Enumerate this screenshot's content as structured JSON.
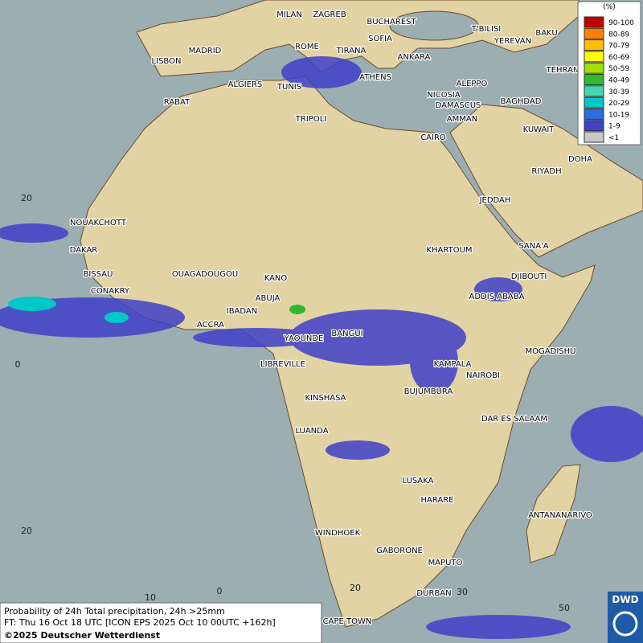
{
  "map": {
    "cities": [
      "MILAN",
      "ZAGREB",
      "BUCHAREST",
      "T'BILISI",
      "BAKU",
      "MADRID",
      "ROME",
      "SOFIA",
      "YEREVAN",
      "LISBON",
      "TIRANA",
      "ANKARA",
      "TEHRAN",
      "ALGIERS",
      "TUNIS",
      "ATHENS",
      "ALEPPO",
      "RABAT",
      "NICOSIA",
      "BAGHDAD",
      "DAMASCUS",
      "TRIPOLI",
      "AMMAN",
      "KUWAIT",
      "CAIRO",
      "DOHA",
      "RIYADH",
      "NOUAKCHOTT",
      "JEDDAH",
      "DAKAR",
      "SANA'A",
      "KHARTOUM",
      "BISSAU",
      "OUAGADOUGOU",
      "KANO",
      "DJIBOUTI",
      "CONAKRY",
      "ABUJA",
      "ADDIS ABABA",
      "IBADAN",
      "ACCRA",
      "BANGUI",
      "YAOUNDE",
      "MOGADISHU",
      "LIBREVILLE",
      "KAMPALA",
      "NAIROBI",
      "KINSHASA",
      "BUJUMBURA",
      "DAR ES SALAAM",
      "LUANDA",
      "LUSAKA",
      "HARARE",
      "ANTANANARIVO",
      "WINDHOEK",
      "GABORONE",
      "MAPUTO",
      "DURBAN",
      "CAPE TOWN"
    ],
    "grid_labels": [
      "20",
      "0",
      "20",
      "10",
      "0",
      "20",
      "30",
      "50"
    ],
    "legend": {
      "title": "(%)",
      "items": [
        {
          "label": "90-100",
          "color": "#c00000"
        },
        {
          "label": "80-89",
          "color": "#ff7f00"
        },
        {
          "label": "70-79",
          "color": "#ffbf00"
        },
        {
          "label": "60-69",
          "color": "#ffff00"
        },
        {
          "label": "50-59",
          "color": "#a0e000"
        },
        {
          "label": "40-49",
          "color": "#30b830"
        },
        {
          "label": "30-39",
          "color": "#40d8b0"
        },
        {
          "label": "20-29",
          "color": "#00c8c8"
        },
        {
          "label": "10-19",
          "color": "#2a6ee0"
        },
        {
          "label": "1-9",
          "color": "#4040c8"
        },
        {
          "label": "<1",
          "color": "#c8c8c8"
        }
      ]
    },
    "footer": {
      "line1": "Probability of 24h Total precipitation, 24h >25mm",
      "line2": "FT: Thu 16 Oct 18 UTC [ICON EPS 2025 Oct 10 00UTC +162h]",
      "line3": "©2025 Deutscher Wetterdienst"
    },
    "logo": "DWD"
  }
}
